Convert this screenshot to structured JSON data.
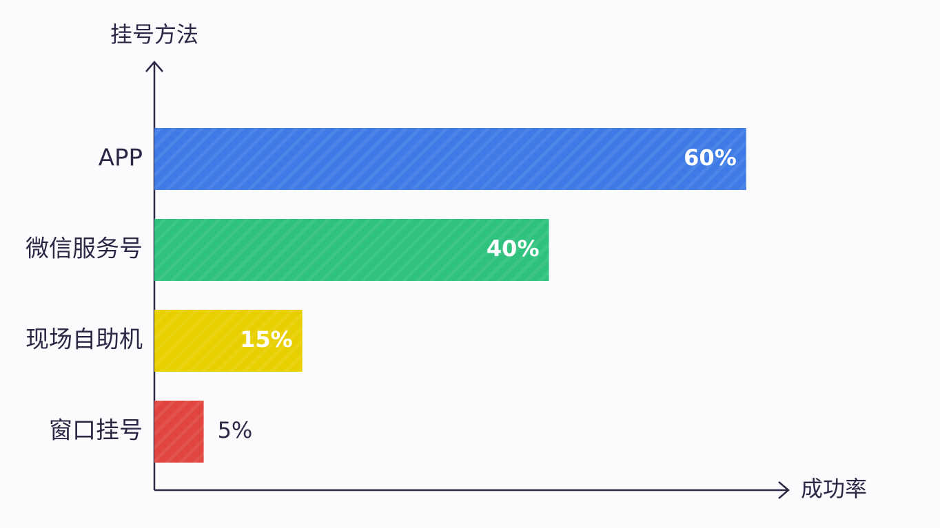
{
  "chart_data": {
    "type": "hbar",
    "y_label": "挂号方法",
    "x_label": "成功率",
    "categories": [
      "APP",
      "微信服务号",
      "现场自助机",
      "窗口挂号"
    ],
    "values": [
      60,
      40,
      15,
      5
    ],
    "value_labels": [
      "60%",
      "40%",
      "15%",
      "5%"
    ],
    "colors": [
      "#3f7be6",
      "#2ec27e",
      "#e8d000",
      "#e0463f"
    ],
    "xlim": [
      0,
      64
    ]
  }
}
